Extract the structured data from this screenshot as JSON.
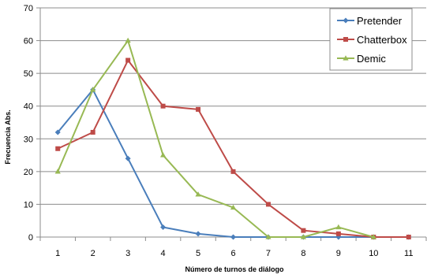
{
  "chart_data": {
    "type": "line",
    "title": "",
    "xlabel": "Número de turnos de diálogo",
    "ylabel": "Frecuencia Abs.",
    "categories": [
      "1",
      "2",
      "3",
      "4",
      "5",
      "6",
      "7",
      "8",
      "9",
      "10",
      "11"
    ],
    "ylim": [
      0,
      70
    ],
    "yticks": [
      "0",
      "10",
      "20",
      "30",
      "40",
      "50",
      "60",
      "70"
    ],
    "grid": "horizontal",
    "legend_position": "top-right",
    "series": [
      {
        "name": "Pretender",
        "color": "#4a7ebb",
        "marker": "diamond",
        "values": [
          32,
          45,
          24,
          3,
          1,
          0,
          0,
          0,
          0,
          0,
          0
        ]
      },
      {
        "name": "Chatterbox",
        "color": "#be4b48",
        "marker": "square",
        "values": [
          27,
          32,
          54,
          40,
          39,
          20,
          10,
          2,
          1,
          0,
          0
        ]
      },
      {
        "name": "Demic",
        "color": "#98b954",
        "marker": "triangle",
        "values": [
          20,
          45,
          60,
          25,
          13,
          9,
          0,
          0,
          3,
          0,
          null
        ]
      }
    ]
  }
}
